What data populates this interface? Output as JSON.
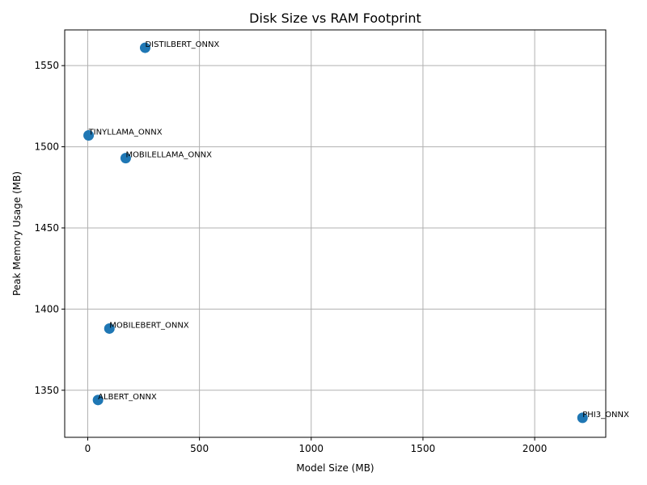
{
  "chart_data": {
    "type": "scatter",
    "title": "Disk Size vs RAM Footprint",
    "xlabel": "Model Size (MB)",
    "ylabel": "Peak Memory Usage (MB)",
    "xlim": [
      -103,
      2318
    ],
    "ylim": [
      1321,
      1572
    ],
    "xticks": [
      0,
      500,
      1000,
      1500,
      2000
    ],
    "yticks": [
      1350,
      1400,
      1450,
      1500,
      1550
    ],
    "grid": true,
    "legend": "none",
    "marker_color": "#1f77b4",
    "points": [
      {
        "label": "DISTILBERT_ONNX",
        "x": 257,
        "y": 1561
      },
      {
        "label": "TINYLLAMA_ONNX",
        "x": 4,
        "y": 1507
      },
      {
        "label": "MOBILELLAMA_ONNX",
        "x": 170,
        "y": 1493
      },
      {
        "label": "MOBILEBERT_ONNX",
        "x": 97,
        "y": 1388
      },
      {
        "label": "ALBERT_ONNX",
        "x": 46,
        "y": 1344
      },
      {
        "label": "PHI3_ONNX",
        "x": 2214,
        "y": 1333
      }
    ]
  }
}
